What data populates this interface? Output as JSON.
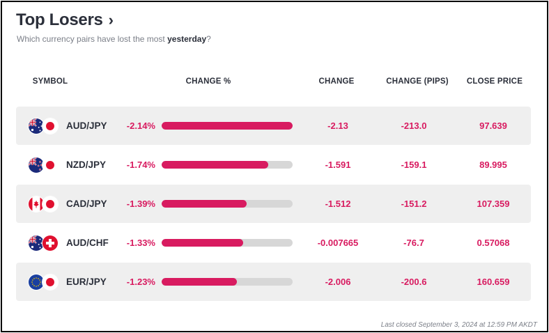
{
  "header": {
    "title": "Top Losers",
    "subtitle_prefix": "Which currency pairs have lost the most ",
    "subtitle_emphasis": "yesterday",
    "subtitle_suffix": "?"
  },
  "columns": {
    "symbol": "SYMBOL",
    "change_pct": "CHANGE %",
    "change": "CHANGE",
    "change_pips": "CHANGE (PIPS)",
    "close_price": "CLOSE PRICE"
  },
  "colors": {
    "accent": "#d81b60",
    "track": "#d7d7d7",
    "row_shade": "#efefef",
    "text_dark": "#2b2f3a"
  },
  "rows": [
    {
      "symbol": "AUD/JPY",
      "flags": [
        "australia-flag",
        "japan-flag"
      ],
      "change_pct": "-2.14%",
      "bar_fraction": 1.0,
      "change": "-2.13",
      "change_pips": "-213.0",
      "close_price": "97.639"
    },
    {
      "symbol": "NZD/JPY",
      "flags": [
        "new-zealand-flag",
        "japan-flag"
      ],
      "change_pct": "-1.74%",
      "bar_fraction": 0.813,
      "change": "-1.591",
      "change_pips": "-159.1",
      "close_price": "89.995"
    },
    {
      "symbol": "CAD/JPY",
      "flags": [
        "canada-flag",
        "japan-flag"
      ],
      "change_pct": "-1.39%",
      "bar_fraction": 0.65,
      "change": "-1.512",
      "change_pips": "-151.2",
      "close_price": "107.359"
    },
    {
      "symbol": "AUD/CHF",
      "flags": [
        "australia-flag",
        "switzerland-flag"
      ],
      "change_pct": "-1.33%",
      "bar_fraction": 0.621,
      "change": "-0.007665",
      "change_pips": "-76.7",
      "close_price": "0.57068"
    },
    {
      "symbol": "EUR/JPY",
      "flags": [
        "eu-flag",
        "japan-flag"
      ],
      "change_pct": "-1.23%",
      "bar_fraction": 0.575,
      "change": "-2.006",
      "change_pips": "-200.6",
      "close_price": "160.659"
    }
  ],
  "footer": {
    "last_closed": "Last closed September 3, 2024 at 12:59 PM AKDT"
  }
}
